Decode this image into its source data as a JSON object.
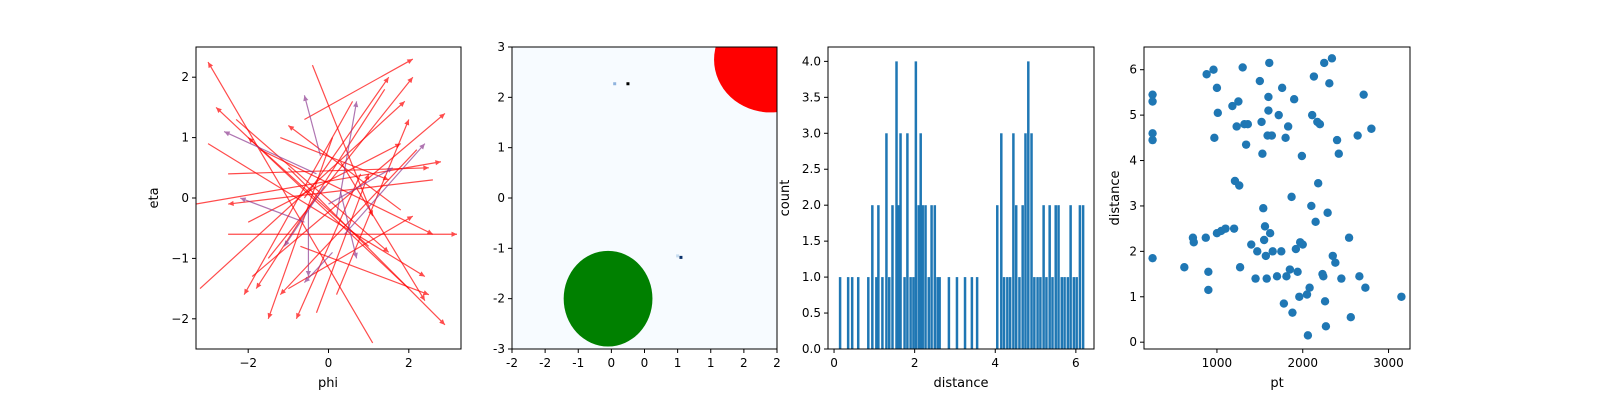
{
  "colors": {
    "arrow_red": "#ff0000",
    "arrow_purple": "#8e3b91",
    "bar_blue": "#1f77b4",
    "scatter_blue": "#1f77b4",
    "heat_bg": "#f7fbff",
    "circle_red": "#ff0000",
    "circle_green": "#008000"
  },
  "chart_data": [
    {
      "type": "quiver",
      "xlabel": "phi",
      "ylabel": "eta",
      "xlim": [
        -3.3,
        3.3
      ],
      "ylim": [
        -2.5,
        2.5
      ],
      "xticks": [
        -2,
        0,
        2
      ],
      "xtick_labels": [
        "−2",
        "0",
        "2"
      ],
      "yticks": [
        -2,
        -1,
        0,
        1,
        2
      ],
      "ytick_labels": [
        "−2",
        "−1",
        "0",
        "1",
        "2"
      ],
      "grid": false,
      "arrows": [
        {
          "from": [
            1.1,
            -2.4
          ],
          "to": [
            -3.0,
            2.25
          ],
          "color": "red"
        },
        {
          "from": [
            -0.6,
            1.3
          ],
          "to": [
            2.1,
            2.3
          ],
          "color": "red"
        },
        {
          "from": [
            -2.3,
            1.3
          ],
          "to": [
            1.5,
            -0.9
          ],
          "color": "red"
        },
        {
          "from": [
            -3.2,
            -1.5
          ],
          "to": [
            1.9,
            1.6
          ],
          "color": "red"
        },
        {
          "from": [
            -1.0,
            0.5
          ],
          "to": [
            2.9,
            -2.1
          ],
          "color": "red"
        },
        {
          "from": [
            0.1,
            1.0
          ],
          "to": [
            -1.5,
            -2.0
          ],
          "color": "red"
        },
        {
          "from": [
            -1.9,
            -1.3
          ],
          "to": [
            2.9,
            1.4
          ],
          "color": "red"
        },
        {
          "from": [
            2.0,
            -1.5
          ],
          "to": [
            -2.8,
            1.5
          ],
          "color": "red"
        },
        {
          "from": [
            -0.4,
            2.2
          ],
          "to": [
            1.1,
            -0.3
          ],
          "color": "red"
        },
        {
          "from": [
            -2.5,
            -0.6
          ],
          "to": [
            3.2,
            -0.6
          ],
          "color": "red"
        },
        {
          "from": [
            -1.7,
            0.8
          ],
          "to": [
            2.6,
            -0.6
          ],
          "color": "red"
        },
        {
          "from": [
            -3.0,
            0.9
          ],
          "to": [
            2.4,
            -1.3
          ],
          "color": "red"
        },
        {
          "from": [
            2.6,
            0.3
          ],
          "to": [
            -2.5,
            -0.1
          ],
          "color": "red"
        },
        {
          "from": [
            1.4,
            1.8
          ],
          "to": [
            -1.8,
            -1.5
          ],
          "color": "red"
        },
        {
          "from": [
            -3.3,
            -0.1
          ],
          "to": [
            2.8,
            0.6
          ],
          "color": "red"
        },
        {
          "from": [
            -1.5,
            -1.0
          ],
          "to": [
            2.1,
            2.0
          ],
          "color": "red"
        },
        {
          "from": [
            0.2,
            -1.6
          ],
          "to": [
            2.0,
            1.3
          ],
          "color": "red"
        },
        {
          "from": [
            0.6,
            1.6
          ],
          "to": [
            -2.1,
            -1.6
          ],
          "color": "red"
        },
        {
          "from": [
            -2.5,
            0.4
          ],
          "to": [
            2.5,
            0.5
          ],
          "color": "red"
        },
        {
          "from": [
            1.0,
            -0.8
          ],
          "to": [
            -2.0,
            1.0
          ],
          "color": "red"
        },
        {
          "from": [
            -0.7,
            -0.8
          ],
          "to": [
            2.5,
            -1.6
          ],
          "color": "red"
        },
        {
          "from": [
            -1.2,
            1.0
          ],
          "to": [
            1.5,
            0.3
          ],
          "color": "red"
        },
        {
          "from": [
            2.2,
            0.8
          ],
          "to": [
            -1.2,
            -1.6
          ],
          "color": "red"
        },
        {
          "from": [
            0.3,
            0.6
          ],
          "to": [
            2.4,
            -1.7
          ],
          "color": "red"
        },
        {
          "from": [
            -0.3,
            -1.9
          ],
          "to": [
            1.0,
            0.4
          ],
          "color": "red"
        },
        {
          "from": [
            -2.0,
            -0.4
          ],
          "to": [
            1.8,
            0.9
          ],
          "color": "red"
        },
        {
          "from": [
            1.8,
            -0.2
          ],
          "to": [
            -1.0,
            1.2
          ],
          "color": "red"
        },
        {
          "from": [
            -0.6,
            0.0
          ],
          "to": [
            1.5,
            2.0
          ],
          "color": "red"
        },
        {
          "from": [
            0.8,
            0.4
          ],
          "to": [
            -0.8,
            -2.0
          ],
          "color": "red"
        },
        {
          "from": [
            -1.0,
            -1.5
          ],
          "to": [
            2.1,
            -0.3
          ],
          "color": "red"
        },
        {
          "from": [
            -0.2,
            0.7
          ],
          "to": [
            -0.6,
            1.7
          ],
          "color": "purple"
        },
        {
          "from": [
            -0.6,
            -0.4
          ],
          "to": [
            -2.2,
            0.0
          ],
          "color": "purple"
        },
        {
          "from": [
            0.2,
            -0.3
          ],
          "to": [
            0.7,
            1.6
          ],
          "color": "purple"
        },
        {
          "from": [
            -0.3,
            0.4
          ],
          "to": [
            -2.6,
            1.1
          ],
          "color": "purple"
        },
        {
          "from": [
            0.1,
            -0.9
          ],
          "to": [
            -0.6,
            -1.4
          ],
          "color": "purple"
        },
        {
          "from": [
            0.0,
            -0.1
          ],
          "to": [
            1.6,
            0.5
          ],
          "color": "purple"
        },
        {
          "from": [
            -0.1,
            0.2
          ],
          "to": [
            -1.1,
            -0.8
          ],
          "color": "purple"
        },
        {
          "from": [
            0.3,
            0.1
          ],
          "to": [
            0.7,
            -1.0
          ],
          "color": "purple"
        },
        {
          "from": [
            -0.5,
            -0.2
          ],
          "to": [
            -0.5,
            -1.3
          ],
          "color": "purple"
        },
        {
          "from": [
            0.4,
            -0.6
          ],
          "to": [
            2.4,
            0.9
          ],
          "color": "purple"
        }
      ]
    },
    {
      "type": "heatmap",
      "xlim": [
        -2,
        2
      ],
      "ylim": [
        -3,
        3
      ],
      "xticks": [
        -2,
        -1.5,
        -1,
        -0.5,
        0,
        0.5,
        1,
        1.5,
        2
      ],
      "xtick_labels": [
        "-2",
        "-2",
        "-1",
        "0",
        "0",
        "1",
        "1",
        "2",
        "2"
      ],
      "yticks": [
        3,
        2,
        1,
        0,
        -1,
        -2,
        -3
      ],
      "ytick_labels": [
        "3",
        "2",
        "1",
        "0",
        "-1",
        "-2",
        "-3"
      ],
      "circles": [
        {
          "center": [
            1.9,
            2.75
          ],
          "radius_x": 0.85,
          "radius_y": 1.05,
          "color": "red"
        },
        {
          "center": [
            -0.55,
            -2.0
          ],
          "radius_x": 0.67,
          "radius_y": 0.95,
          "color": "green"
        }
      ],
      "specks": [
        {
          "x": -0.25,
          "y": 2.27,
          "color": "#000000"
        },
        {
          "x": -0.45,
          "y": 2.27,
          "color": "#8fb3de"
        },
        {
          "x": 0.55,
          "y": -1.18,
          "color": "#08306b"
        },
        {
          "x": 0.5,
          "y": -1.15,
          "color": "#c6dbef"
        }
      ]
    },
    {
      "type": "bar",
      "xlabel": "distance",
      "ylabel": "count",
      "xlim": [
        -0.15,
        6.45
      ],
      "ylim": [
        0,
        4.2
      ],
      "xticks": [
        0,
        2,
        4,
        6
      ],
      "xtick_labels": [
        "0",
        "2",
        "4",
        "6"
      ],
      "yticks": [
        0,
        0.5,
        1,
        1.5,
        2,
        2.5,
        3,
        3.5,
        4
      ],
      "ytick_labels": [
        "0.0",
        "0.5",
        "1.0",
        "1.5",
        "2.0",
        "2.5",
        "3.0",
        "3.5",
        "4.0"
      ],
      "bin_width": 0.062,
      "bins": [
        [
          0.15,
          1
        ],
        [
          0.35,
          1
        ],
        [
          0.45,
          1
        ],
        [
          0.6,
          1
        ],
        [
          0.85,
          1
        ],
        [
          0.95,
          2
        ],
        [
          1.05,
          1
        ],
        [
          1.1,
          2
        ],
        [
          1.2,
          1
        ],
        [
          1.3,
          3
        ],
        [
          1.37,
          1
        ],
        [
          1.45,
          2
        ],
        [
          1.55,
          4
        ],
        [
          1.6,
          2
        ],
        [
          1.65,
          3
        ],
        [
          1.75,
          1
        ],
        [
          1.82,
          3
        ],
        [
          1.9,
          1
        ],
        [
          1.97,
          1
        ],
        [
          2.03,
          4
        ],
        [
          2.1,
          2
        ],
        [
          2.15,
          3
        ],
        [
          2.2,
          2
        ],
        [
          2.27,
          2
        ],
        [
          2.35,
          1
        ],
        [
          2.42,
          2
        ],
        [
          2.5,
          2
        ],
        [
          2.57,
          1
        ],
        [
          2.62,
          1
        ],
        [
          2.85,
          1
        ],
        [
          3.05,
          1
        ],
        [
          3.25,
          1
        ],
        [
          3.42,
          1
        ],
        [
          3.55,
          1
        ],
        [
          4.05,
          2
        ],
        [
          4.15,
          3
        ],
        [
          4.22,
          1
        ],
        [
          4.3,
          1
        ],
        [
          4.37,
          1
        ],
        [
          4.45,
          3
        ],
        [
          4.52,
          2
        ],
        [
          4.6,
          1
        ],
        [
          4.68,
          2
        ],
        [
          4.75,
          3
        ],
        [
          4.82,
          4
        ],
        [
          4.9,
          3
        ],
        [
          4.97,
          1
        ],
        [
          5.05,
          1
        ],
        [
          5.12,
          1
        ],
        [
          5.2,
          2
        ],
        [
          5.27,
          1
        ],
        [
          5.35,
          2
        ],
        [
          5.42,
          1
        ],
        [
          5.5,
          2
        ],
        [
          5.57,
          2
        ],
        [
          5.65,
          1
        ],
        [
          5.72,
          1
        ],
        [
          5.8,
          1
        ],
        [
          5.87,
          2
        ],
        [
          5.95,
          1
        ],
        [
          6.02,
          1
        ],
        [
          6.1,
          2
        ],
        [
          6.18,
          2
        ]
      ]
    },
    {
      "type": "scatter",
      "xlabel": "pt",
      "ylabel": "distance",
      "xlim": [
        150,
        3250
      ],
      "ylim": [
        -0.15,
        6.5
      ],
      "xticks": [
        1000,
        2000,
        3000
      ],
      "xtick_labels": [
        "1000",
        "2000",
        "3000"
      ],
      "yticks": [
        0,
        1,
        2,
        3,
        4,
        5,
        6
      ],
      "ytick_labels": [
        "0",
        "1",
        "2",
        "3",
        "4",
        "5",
        "6"
      ],
      "points": [
        [
          250,
          5.45
        ],
        [
          250,
          5.3
        ],
        [
          250,
          4.6
        ],
        [
          250,
          4.45
        ],
        [
          250,
          1.85
        ],
        [
          620,
          1.65
        ],
        [
          720,
          2.3
        ],
        [
          730,
          2.2
        ],
        [
          880,
          5.9
        ],
        [
          870,
          2.3
        ],
        [
          900,
          1.55
        ],
        [
          900,
          1.15
        ],
        [
          960,
          6.0
        ],
        [
          970,
          4.5
        ],
        [
          1000,
          5.6
        ],
        [
          1010,
          5.05
        ],
        [
          1050,
          2.45
        ],
        [
          1000,
          2.4
        ],
        [
          1100,
          2.5
        ],
        [
          1180,
          5.2
        ],
        [
          1200,
          2.5
        ],
        [
          1210,
          3.55
        ],
        [
          1230,
          4.75
        ],
        [
          1250,
          5.3
        ],
        [
          1260,
          3.45
        ],
        [
          1270,
          1.65
        ],
        [
          1300,
          6.05
        ],
        [
          1320,
          4.8
        ],
        [
          1340,
          4.35
        ],
        [
          1360,
          4.8
        ],
        [
          1400,
          2.15
        ],
        [
          1450,
          1.4
        ],
        [
          1470,
          2.0
        ],
        [
          1500,
          5.75
        ],
        [
          1520,
          4.85
        ],
        [
          1530,
          4.15
        ],
        [
          1540,
          2.95
        ],
        [
          1560,
          2.55
        ],
        [
          1550,
          2.25
        ],
        [
          1570,
          1.9
        ],
        [
          1580,
          1.4
        ],
        [
          1590,
          4.55
        ],
        [
          1600,
          5.4
        ],
        [
          1600,
          5.1
        ],
        [
          1610,
          6.15
        ],
        [
          1620,
          2.4
        ],
        [
          1640,
          4.55
        ],
        [
          1650,
          2.0
        ],
        [
          1700,
          1.45
        ],
        [
          1720,
          5.0
        ],
        [
          1750,
          2.0
        ],
        [
          1760,
          5.6
        ],
        [
          1780,
          0.85
        ],
        [
          1800,
          4.5
        ],
        [
          1810,
          1.45
        ],
        [
          1830,
          4.75
        ],
        [
          1850,
          1.6
        ],
        [
          1870,
          3.2
        ],
        [
          1880,
          0.65
        ],
        [
          1900,
          5.35
        ],
        [
          1920,
          2.05
        ],
        [
          1940,
          1.55
        ],
        [
          1960,
          1.0
        ],
        [
          1970,
          2.2
        ],
        [
          1990,
          4.1
        ],
        [
          2000,
          2.15
        ],
        [
          2050,
          1.05
        ],
        [
          2060,
          0.15
        ],
        [
          2080,
          1.2
        ],
        [
          2100,
          3.0
        ],
        [
          2110,
          5.0
        ],
        [
          2130,
          5.85
        ],
        [
          2150,
          2.65
        ],
        [
          2170,
          4.85
        ],
        [
          2180,
          3.5
        ],
        [
          2200,
          4.8
        ],
        [
          2230,
          1.5
        ],
        [
          2240,
          1.45
        ],
        [
          2250,
          6.15
        ],
        [
          2260,
          0.9
        ],
        [
          2270,
          0.35
        ],
        [
          2290,
          2.85
        ],
        [
          2310,
          5.7
        ],
        [
          2340,
          6.25
        ],
        [
          2350,
          1.9
        ],
        [
          2380,
          1.75
        ],
        [
          2400,
          4.45
        ],
        [
          2420,
          4.15
        ],
        [
          2450,
          1.4
        ],
        [
          2540,
          2.3
        ],
        [
          2560,
          0.55
        ],
        [
          2640,
          4.55
        ],
        [
          2660,
          1.45
        ],
        [
          2710,
          5.45
        ],
        [
          2730,
          1.2
        ],
        [
          2800,
          4.7
        ],
        [
          3150,
          1.0
        ]
      ]
    }
  ]
}
